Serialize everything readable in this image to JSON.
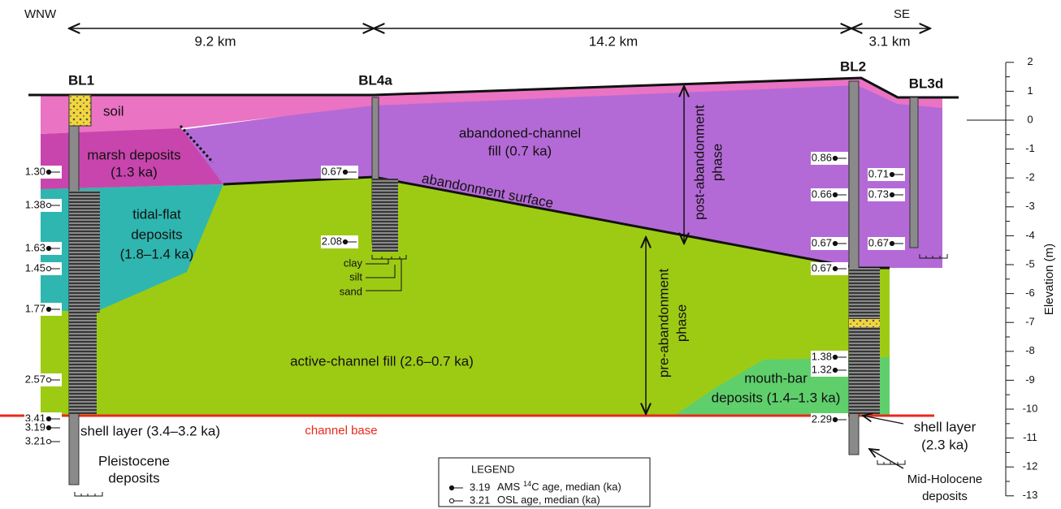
{
  "header": {
    "west": "WNW",
    "east": "SE"
  },
  "distances": [
    "9.2 km",
    "14.2 km",
    "3.1 km"
  ],
  "boreholes": [
    {
      "name": "BL1",
      "ages": [
        {
          "label": "1.30",
          "marker": "filled"
        },
        {
          "label": "1.38",
          "marker": "open"
        },
        {
          "label": "1.63",
          "marker": "filled"
        },
        {
          "label": "1.45",
          "marker": "open"
        },
        {
          "label": "1.77",
          "marker": "filled"
        },
        {
          "label": "2.57",
          "marker": "open"
        },
        {
          "label": "3.41",
          "marker": "filled"
        },
        {
          "label": "3.19",
          "marker": "filled"
        },
        {
          "label": "3.21",
          "marker": "open"
        }
      ]
    },
    {
      "name": "BL4a",
      "ages": [
        {
          "label": "0.67",
          "marker": "filled"
        },
        {
          "label": "2.08",
          "marker": "filled"
        }
      ]
    },
    {
      "name": "BL2",
      "ages": [
        {
          "label": "0.86",
          "marker": "filled"
        },
        {
          "label": "0.66",
          "marker": "filled"
        },
        {
          "label": "0.67",
          "marker": "filled"
        },
        {
          "label": "0.67",
          "marker": "filled"
        },
        {
          "label": "1.38",
          "marker": "filled"
        },
        {
          "label": "1.32",
          "marker": "filled"
        },
        {
          "label": "2.29",
          "marker": "filled"
        }
      ]
    },
    {
      "name": "BL3d",
      "ages": [
        {
          "label": "0.71",
          "marker": "filled"
        },
        {
          "label": "0.73",
          "marker": "filled"
        },
        {
          "label": "0.67",
          "marker": "filled"
        }
      ]
    }
  ],
  "labels": {
    "soil": "soil",
    "marsh": [
      "marsh deposits",
      "(1.3 ka)"
    ],
    "tidal_flat": [
      "tidal-flat",
      "deposits",
      "(1.8–1.4 ka)"
    ],
    "abandoned_channel": [
      "abandoned-channel",
      "fill (0.7 ka)"
    ],
    "abandonment_surface": "abandonment surface",
    "post_abandonment": [
      "post-abandonment",
      "phase"
    ],
    "pre_abandonment": [
      "pre-abandonment",
      "phase"
    ],
    "active_channel": "active-channel fill (2.6–0.7 ka)",
    "mouth_bar": [
      "mouth-bar",
      "deposits (1.4–1.3 ka)"
    ],
    "channel_base": "channel base",
    "shell_layer_bl1": "shell layer (3.4–3.2 ka)",
    "pleistocene": [
      "Pleistocene",
      "deposits"
    ],
    "shell_layer_bl2": [
      "shell layer",
      "(2.3 ka)"
    ],
    "mid_holocene": [
      "Mid-Holocene",
      "deposits"
    ],
    "grain_size": [
      "clay",
      "silt",
      "sand"
    ]
  },
  "legend": {
    "title": "LEGEND",
    "items": [
      {
        "marker": "filled",
        "sample": "3.19",
        "text": [
          "AMS",
          "14",
          "C age, median (ka)"
        ]
      },
      {
        "marker": "open",
        "sample": "3.21",
        "text": [
          "OSL age, median (ka)"
        ]
      }
    ]
  },
  "axis": {
    "label": "Elevation (m)",
    "ticks": [
      2,
      1,
      0,
      -1,
      -2,
      -3,
      -4,
      -5,
      -6,
      -7,
      -8,
      -9,
      -10,
      -11,
      -12,
      -13
    ]
  }
}
